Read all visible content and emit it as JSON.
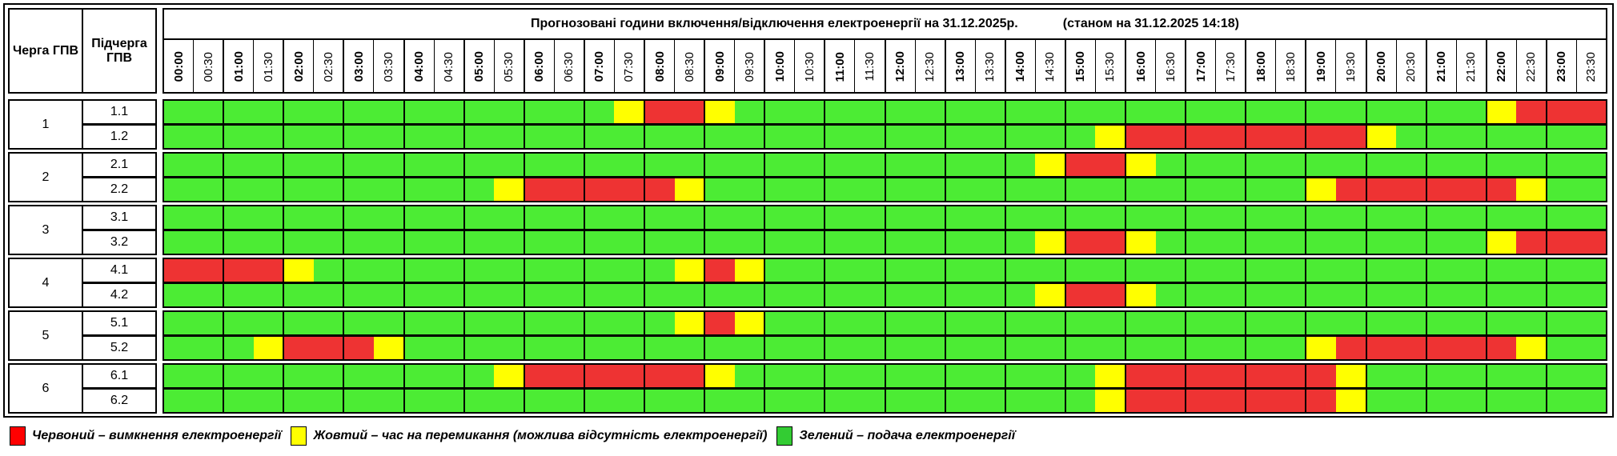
{
  "header": {
    "queue_label": "Черга ГПВ",
    "subqueue_label": "Підчерга ГПВ",
    "title": "Прогнозовані години включення/відключення електроенергії на 31.12.2025р.",
    "status": "(станом на 31.12.2025 14:18)"
  },
  "times": [
    "00:00",
    "00:30",
    "01:00",
    "01:30",
    "02:00",
    "02:30",
    "03:00",
    "03:30",
    "04:00",
    "04:30",
    "05:00",
    "05:30",
    "06:00",
    "06:30",
    "07:00",
    "07:30",
    "08:00",
    "08:30",
    "09:00",
    "09:30",
    "10:00",
    "10:30",
    "11:00",
    "11:30",
    "12:00",
    "12:30",
    "13:00",
    "13:30",
    "14:00",
    "14:30",
    "15:00",
    "15:30",
    "16:00",
    "16:30",
    "17:00",
    "17:30",
    "18:00",
    "18:30",
    "19:00",
    "19:30",
    "20:00",
    "20:30",
    "21:00",
    "21:30",
    "22:00",
    "22:30",
    "23:00",
    "23:30"
  ],
  "colors": {
    "R": "#ee3333",
    "Y": "#ffff00",
    "G": "#4cec34"
  },
  "groups": [
    {
      "queue": "1",
      "subs": [
        {
          "label": "1.1",
          "runs": [
            [
              "G",
              15
            ],
            [
              "Y",
              1
            ],
            [
              "R",
              2
            ],
            [
              "Y",
              1
            ],
            [
              "G",
              25
            ],
            [
              "Y",
              1
            ],
            [
              "R",
              3
            ]
          ]
        },
        {
          "label": "1.2",
          "runs": [
            [
              "G",
              31
            ],
            [
              "Y",
              1
            ],
            [
              "R",
              8
            ],
            [
              "Y",
              1
            ],
            [
              "G",
              7
            ]
          ]
        }
      ]
    },
    {
      "queue": "2",
      "subs": [
        {
          "label": "2.1",
          "runs": [
            [
              "G",
              29
            ],
            [
              "Y",
              1
            ],
            [
              "R",
              2
            ],
            [
              "Y",
              1
            ],
            [
              "G",
              15
            ]
          ]
        },
        {
          "label": "2.2",
          "runs": [
            [
              "G",
              11
            ],
            [
              "Y",
              1
            ],
            [
              "R",
              5
            ],
            [
              "Y",
              1
            ],
            [
              "G",
              20
            ],
            [
              "Y",
              1
            ],
            [
              "R",
              6
            ],
            [
              "Y",
              1
            ],
            [
              "G",
              2
            ]
          ]
        }
      ]
    },
    {
      "queue": "3",
      "subs": [
        {
          "label": "3.1",
          "runs": [
            [
              "G",
              48
            ]
          ]
        },
        {
          "label": "3.2",
          "runs": [
            [
              "G",
              29
            ],
            [
              "Y",
              1
            ],
            [
              "R",
              2
            ],
            [
              "Y",
              1
            ],
            [
              "G",
              11
            ],
            [
              "Y",
              1
            ],
            [
              "R",
              3
            ]
          ]
        }
      ]
    },
    {
      "queue": "4",
      "subs": [
        {
          "label": "4.1",
          "runs": [
            [
              "R",
              4
            ],
            [
              "Y",
              1
            ],
            [
              "G",
              12
            ],
            [
              "Y",
              1
            ],
            [
              "R",
              1
            ],
            [
              "Y",
              1
            ],
            [
              "G",
              28
            ]
          ]
        },
        {
          "label": "4.2",
          "runs": [
            [
              "G",
              29
            ],
            [
              "Y",
              1
            ],
            [
              "R",
              2
            ],
            [
              "Y",
              1
            ],
            [
              "G",
              15
            ]
          ]
        }
      ]
    },
    {
      "queue": "5",
      "subs": [
        {
          "label": "5.1",
          "runs": [
            [
              "G",
              17
            ],
            [
              "Y",
              1
            ],
            [
              "R",
              1
            ],
            [
              "Y",
              1
            ],
            [
              "G",
              28
            ]
          ]
        },
        {
          "label": "5.2",
          "runs": [
            [
              "G",
              3
            ],
            [
              "Y",
              1
            ],
            [
              "R",
              3
            ],
            [
              "Y",
              1
            ],
            [
              "G",
              30
            ],
            [
              "Y",
              1
            ],
            [
              "R",
              6
            ],
            [
              "Y",
              1
            ],
            [
              "G",
              2
            ]
          ]
        }
      ]
    },
    {
      "queue": "6",
      "subs": [
        {
          "label": "6.1",
          "runs": [
            [
              "G",
              11
            ],
            [
              "Y",
              1
            ],
            [
              "R",
              6
            ],
            [
              "Y",
              1
            ],
            [
              "G",
              12
            ],
            [
              "Y",
              1
            ],
            [
              "R",
              7
            ],
            [
              "Y",
              1
            ],
            [
              "G",
              8
            ]
          ]
        },
        {
          "label": "6.2",
          "runs": [
            [
              "G",
              31
            ],
            [
              "Y",
              1
            ],
            [
              "R",
              7
            ],
            [
              "Y",
              1
            ],
            [
              "G",
              8
            ]
          ]
        }
      ]
    }
  ],
  "legend": [
    {
      "color": "#ff0000",
      "text": "Червоний – вимкнення електроенергії"
    },
    {
      "color": "#ffff00",
      "text": "Жовтий – час на перемикання (можлива відсутність електроенергії)"
    },
    {
      "color": "#33cc33",
      "text": "Зелений – подача електроенергії"
    }
  ]
}
